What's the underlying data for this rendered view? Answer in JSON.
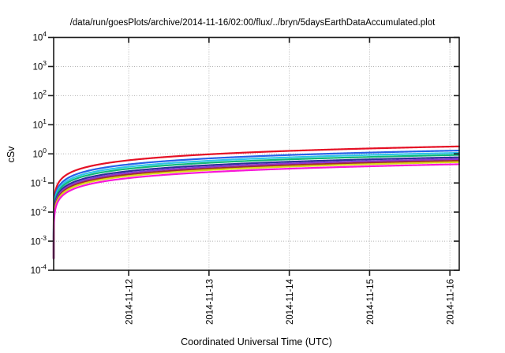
{
  "title": "/data/run/goesPlots/archive/2014-11-16/02:00/flux/../bryn/5daysEarthDataAccumulated.plot",
  "axes": {
    "y_label": "cSv",
    "x_label": "Coordinated Universal Time (UTC)",
    "y_tick_base": "10",
    "y_tick_exponents": [
      4,
      3,
      2,
      1,
      0,
      -1,
      -2,
      -3,
      -4
    ],
    "x_tick_labels": [
      "2014-11-12",
      "2014-11-13",
      "2014-11-14",
      "2014-11-15",
      "2014-11-16"
    ]
  },
  "chart_data": {
    "type": "line",
    "title": "/data/run/goesPlots/archive/2014-11-16/02:00/flux/../bryn/5daysEarthDataAccumulated.plot",
    "xlabel": "Coordinated Universal Time (UTC)",
    "ylabel": "cSv",
    "x_scale": "time",
    "x_range": [
      "2014-11-11 ~02:00",
      "2014-11-16 ~02:00"
    ],
    "x_tick_dates": [
      "2014-11-12",
      "2014-11-13",
      "2014-11-14",
      "2014-11-15",
      "2014-11-16"
    ],
    "y_scale": "log10",
    "y_range": [
      0.0001,
      10000
    ],
    "grid": true,
    "legend_position": "none",
    "description": "Nine accumulated-dose curves rising steeply from ~3e-4 cSv at the left edge and flattening toward the right edge",
    "curve_model_exponent": 0.65,
    "series": [
      {
        "name": "red",
        "color": "#e51025",
        "end_value": 1.8,
        "values_at_ticks": [
          0.6,
          0.96,
          1.26,
          1.53,
          1.77
        ]
      },
      {
        "name": "blue",
        "color": "#2761e8",
        "end_value": 1.3,
        "values_at_ticks": [
          0.43,
          0.7,
          0.91,
          1.11,
          1.28
        ]
      },
      {
        "name": "cyan",
        "color": "#2fc4e8",
        "end_value": 1.08,
        "values_at_ticks": [
          0.36,
          0.58,
          0.76,
          0.92,
          1.06
        ]
      },
      {
        "name": "green",
        "color": "#10b878",
        "end_value": 0.92,
        "values_at_ticks": [
          0.31,
          0.49,
          0.65,
          0.78,
          0.91
        ]
      },
      {
        "name": "navy",
        "color": "#2c2f9a",
        "end_value": 0.76,
        "values_at_ticks": [
          0.25,
          0.41,
          0.53,
          0.65,
          0.75
        ]
      },
      {
        "name": "purple",
        "color": "#8d36cf",
        "end_value": 0.66,
        "values_at_ticks": [
          0.22,
          0.35,
          0.46,
          0.56,
          0.65
        ]
      },
      {
        "name": "maroon",
        "color": "#9e2b33",
        "end_value": 0.58,
        "values_at_ticks": [
          0.19,
          0.31,
          0.41,
          0.49,
          0.57
        ]
      },
      {
        "name": "yellow",
        "color": "#d8d816",
        "end_value": 0.52,
        "values_at_ticks": [
          0.17,
          0.28,
          0.37,
          0.44,
          0.51
        ]
      },
      {
        "name": "magenta",
        "color": "#f816d8",
        "end_value": 0.44,
        "values_at_ticks": [
          0.15,
          0.24,
          0.31,
          0.37,
          0.43
        ]
      }
    ],
    "colors": {
      "border": "#1c1c1c",
      "grid": "#b3b3b3",
      "text": "#000000",
      "background": "#ffffff"
    }
  }
}
